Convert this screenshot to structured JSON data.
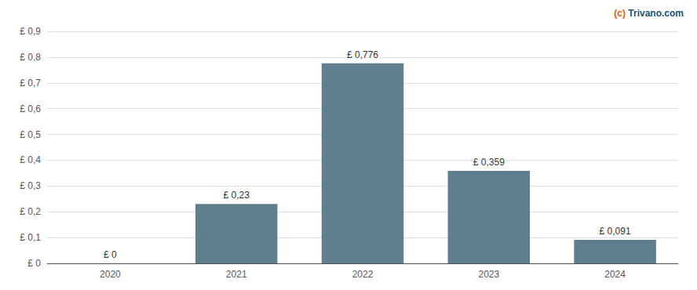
{
  "chart_data": {
    "type": "bar",
    "categories": [
      "2020",
      "2021",
      "2022",
      "2023",
      "2024"
    ],
    "values": [
      0.0,
      0.23,
      0.776,
      0.359,
      0.091
    ],
    "value_labels": [
      "£ 0",
      "£ 0,23",
      "£ 0,776",
      "£ 0,359",
      "£ 0,091"
    ],
    "data_labels": true,
    "color": "#5f7f8f",
    "ylim": [
      0,
      0.9
    ],
    "yticks": [
      {
        "value": 0.0,
        "label": "£ 0"
      },
      {
        "value": 0.1,
        "label": "£ 0,1"
      },
      {
        "value": 0.2,
        "label": "£ 0,2"
      },
      {
        "value": 0.3,
        "label": "£ 0,3"
      },
      {
        "value": 0.4,
        "label": "£ 0,4"
      },
      {
        "value": 0.5,
        "label": "£ 0,5"
      },
      {
        "value": 0.6,
        "label": "£ 0,6"
      },
      {
        "value": 0.7,
        "label": "£ 0,7"
      },
      {
        "value": 0.8,
        "label": "£ 0,8"
      },
      {
        "value": 0.9,
        "label": "£ 0,9"
      }
    ],
    "grid": true,
    "annotations": [
      {
        "text": "(c)",
        "color": "#e06000"
      },
      {
        "text": "Trivano.com",
        "color": "#1a5276"
      }
    ]
  }
}
